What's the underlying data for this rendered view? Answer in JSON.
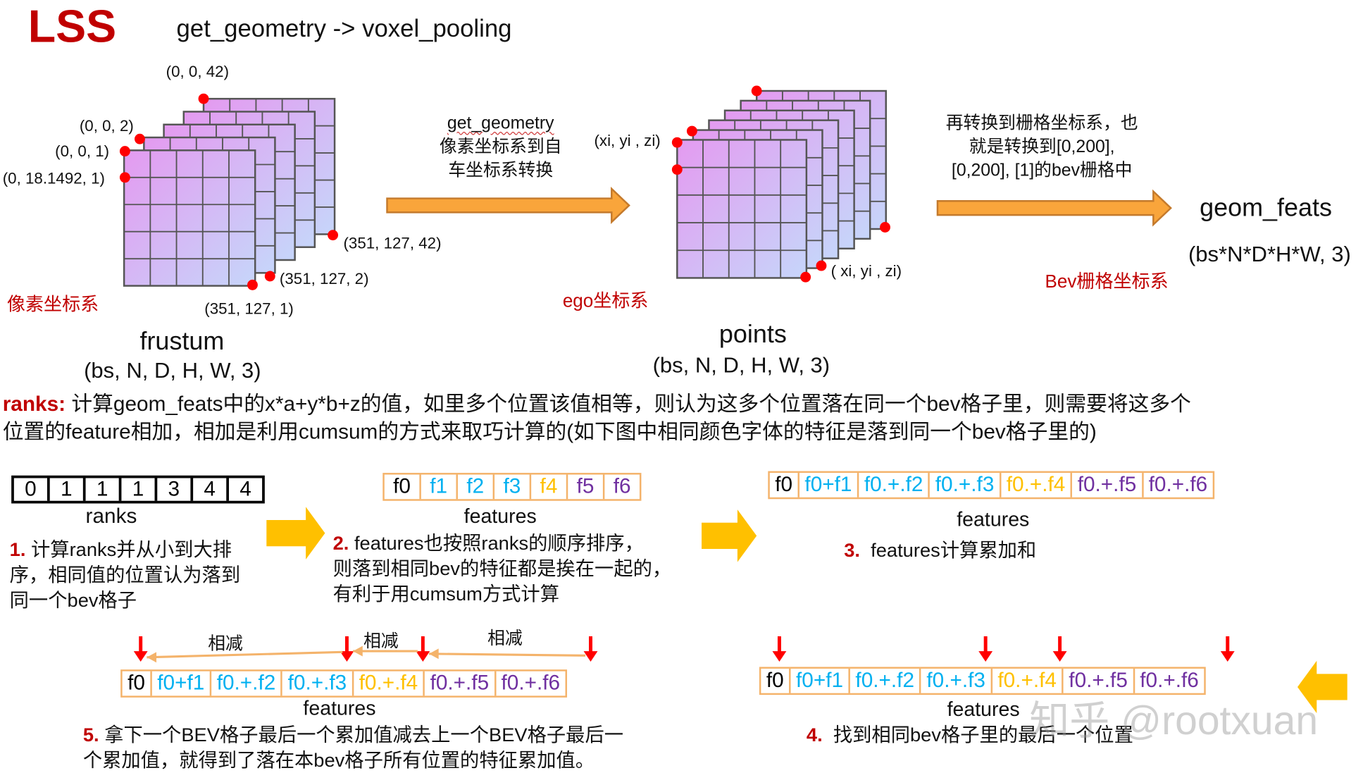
{
  "header": {
    "logo": "LSS",
    "title": "get_geometry -> voxel_pooling"
  },
  "colors": {
    "red": "#c00000",
    "orange_arrow": "#f9a53b",
    "yellow_arrow": "#ffc000",
    "blue": "#00b0f0",
    "gold": "#ffc000",
    "purple": "#7030a0",
    "box_border": "#f4b36b",
    "dot": "#ff0000"
  },
  "frustum": {
    "name": "frustum",
    "shape": "(bs, N, D, H, W, 3)",
    "coord_system": "像素坐标系",
    "labels": {
      "top_back": "(0, 0, 42)",
      "top_2": "(0, 0, 2)",
      "top_1": "(0, 0, 1)",
      "left": "(0, 18.1492, 1)",
      "br_back": "(351, 127, 42)",
      "br_2": "(351, 127, 2)",
      "br_1": "(351, 127, 1)"
    }
  },
  "arrow1": {
    "lines": [
      "get_geometry",
      "像素坐标系到自",
      "车坐标系转换"
    ]
  },
  "points": {
    "name": "points",
    "shape": "(bs, N, D, H, W, 3)",
    "coord_system": "ego坐标系",
    "label_tl": "(xi, yi , zi)",
    "label_br": "( xi, yi , zi)"
  },
  "arrow2": {
    "lines": [
      "再转换到栅格坐标系，也",
      "就是转换到[0,200],",
      "[0,200], [1]的bev栅格中"
    ],
    "coord_system": "Bev栅格坐标系"
  },
  "geom_feats": {
    "name": "geom_feats",
    "shape": "(bs*N*D*H*W, 3)"
  },
  "ranks_desc": {
    "key": "ranks:",
    "line1": " 计算geom_feats中的x*a+y*b+z的值，如里多个位置该值相等，则认为这多个位置落在同一个bev格子里，则需要将这多个",
    "line2": "位置的feature相加，相加是利用cumsum的方式来取巧计算的(如下图中相同颜色字体的特征是落到同一个bev格子里的)"
  },
  "ranks": {
    "values": [
      "0",
      "1",
      "1",
      "1",
      "3",
      "4",
      "4"
    ],
    "label": "ranks"
  },
  "features": {
    "values": [
      {
        "t": "f0",
        "c": "#000000"
      },
      {
        "t": "f1",
        "c": "#00b0f0"
      },
      {
        "t": "f2",
        "c": "#00b0f0"
      },
      {
        "t": "f3",
        "c": "#00b0f0"
      },
      {
        "t": "f4",
        "c": "#ffc000"
      },
      {
        "t": "f5",
        "c": "#7030a0"
      },
      {
        "t": "f6",
        "c": "#7030a0"
      }
    ],
    "label": "features"
  },
  "cumsum": {
    "values": [
      {
        "t": "f0",
        "c": "#000000"
      },
      {
        "t": "f0+f1",
        "c": "#00b0f0"
      },
      {
        "t": "f0.+.f2",
        "c": "#00b0f0"
      },
      {
        "t": "f0.+.f3",
        "c": "#00b0f0"
      },
      {
        "t": "f0.+.f4",
        "c": "#ffc000"
      },
      {
        "t": "f0.+.f5",
        "c": "#7030a0"
      },
      {
        "t": "f0.+.f6",
        "c": "#7030a0"
      }
    ],
    "label": "features"
  },
  "steps": {
    "s1": {
      "num": "1.",
      "lines": [
        " 计算ranks并从小到大排",
        "序，相同值的位置认为落到",
        "同一个bev格子"
      ]
    },
    "s2": {
      "num": "2.",
      "lines": [
        " features也按照ranks的顺序排序，",
        "则落到相同bev的特征都是挨在一起的，",
        "有利于用cumsum方式计算"
      ]
    },
    "s3": {
      "num": "3.",
      "text": "  features计算累加和"
    },
    "s4": {
      "num": "4.",
      "text": "  找到相同bev格子里的最后一个位置",
      "label": "features"
    },
    "s5": {
      "num": "5.",
      "lines": [
        " 拿下一个BEV格子最后一个累加值减去上一个BEV格子最后一",
        "个累加值，就得到了落在本bev格子所有位置的特征累加值。"
      ],
      "label": "features",
      "subtract": [
        "相减",
        "相减",
        "相减"
      ]
    }
  },
  "watermark": "知乎 @rootxuan"
}
